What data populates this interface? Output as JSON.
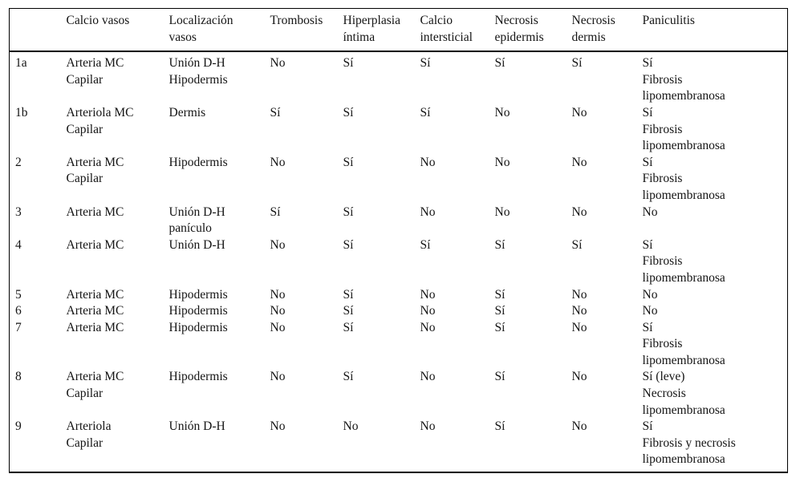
{
  "table": {
    "columns": [
      "",
      "Calcio vasos",
      "Localización\nvasos",
      "Trombosis",
      "Hiperplasia\níntima",
      "Calcio\nintersticial",
      "Necrosis\nepidermis",
      "Necrosis\ndermis",
      "Paniculitis"
    ],
    "rows": [
      {
        "id": "1a",
        "cells": [
          "Arteria MC\nCapilar",
          "Unión D-H\nHipodermis",
          "No",
          "Sí",
          "Sí",
          "Sí",
          "Sí",
          "Sí\nFibrosis\nlipomembranosa"
        ]
      },
      {
        "id": "1b",
        "cells": [
          "Arteriola MC\nCapilar",
          "Dermis",
          "Sí",
          "Sí",
          "Sí",
          "No",
          "No",
          "Sí\nFibrosis\nlipomembranosa"
        ]
      },
      {
        "id": "2",
        "cells": [
          "Arteria MC\nCapilar",
          "Hipodermis",
          "No",
          "Sí",
          "No",
          "No",
          "No",
          "Sí\nFibrosis\nlipomembranosa"
        ]
      },
      {
        "id": "3",
        "cells": [
          "Arteria MC",
          "Unión D-H\npanículo",
          "Sí",
          "Sí",
          "No",
          "No",
          "No",
          "No"
        ]
      },
      {
        "id": "4",
        "cells": [
          "Arteria MC",
          "Unión D-H",
          "No",
          "Sí",
          "Sí",
          "Sí",
          "Sí",
          "Sí\nFibrosis\nlipomembranosa"
        ]
      },
      {
        "id": "5",
        "cells": [
          "Arteria MC",
          "Hipodermis",
          "No",
          "Sí",
          "No",
          "Sí",
          "No",
          "No"
        ]
      },
      {
        "id": "6",
        "cells": [
          "Arteria MC",
          "Hipodermis",
          "No",
          "Sí",
          "No",
          "Sí",
          "No",
          "No"
        ]
      },
      {
        "id": "7",
        "cells": [
          "Arteria MC",
          "Hipodermis",
          "No",
          "Sí",
          "No",
          "Sí",
          "No",
          "Sí\nFibrosis\nlipomembranosa"
        ]
      },
      {
        "id": "8",
        "cells": [
          "Arteria MC\nCapilar",
          "Hipodermis",
          "No",
          "Sí",
          "No",
          "Sí",
          "No",
          "Sí (leve)\nNecrosis\nlipomembranosa"
        ]
      },
      {
        "id": "9",
        "cells": [
          "Arteriola\nCapilar",
          "Unión D-H",
          "No",
          "No",
          "No",
          "Sí",
          "No",
          "Sí\nFibrosis y necrosis\nlipomembranosa"
        ]
      }
    ]
  }
}
